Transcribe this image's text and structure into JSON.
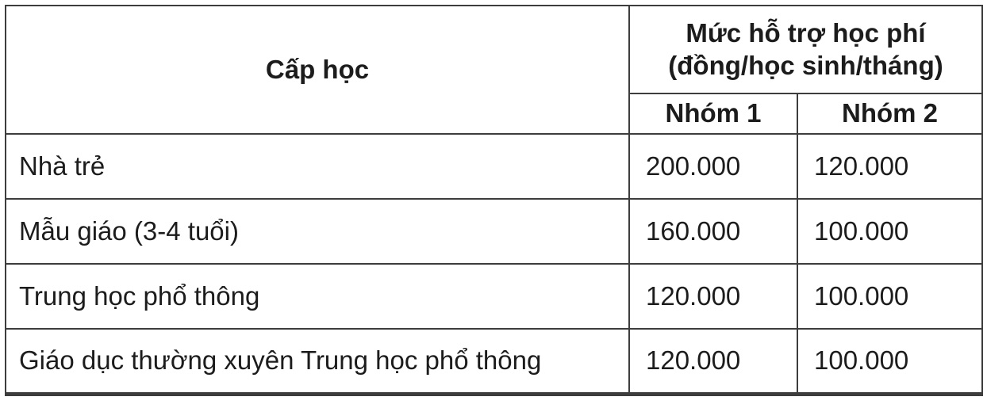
{
  "table": {
    "level_header": "Cấp học",
    "group_header_line1": "Mức hỗ trợ học phí",
    "group_header_line2": "(đồng/học sinh/tháng)",
    "subheaders": [
      "Nhóm 1",
      "Nhóm 2"
    ],
    "rows": [
      {
        "level": "Nhà trẻ",
        "nhom1": "200.000",
        "nhom2": "120.000"
      },
      {
        "level": "Mẫu giáo (3-4 tuổi)",
        "nhom1": "160.000",
        "nhom2": "100.000"
      },
      {
        "level": "Trung học phổ thông",
        "nhom1": "120.000",
        "nhom2": "100.000"
      },
      {
        "level": "Giáo dục thường xuyên Trung học phổ thông",
        "nhom1": "120.000",
        "nhom2": "100.000"
      }
    ]
  },
  "colors": {
    "border": "#3d3d3d",
    "text": "#1c1c1c",
    "background": "#ffffff"
  }
}
